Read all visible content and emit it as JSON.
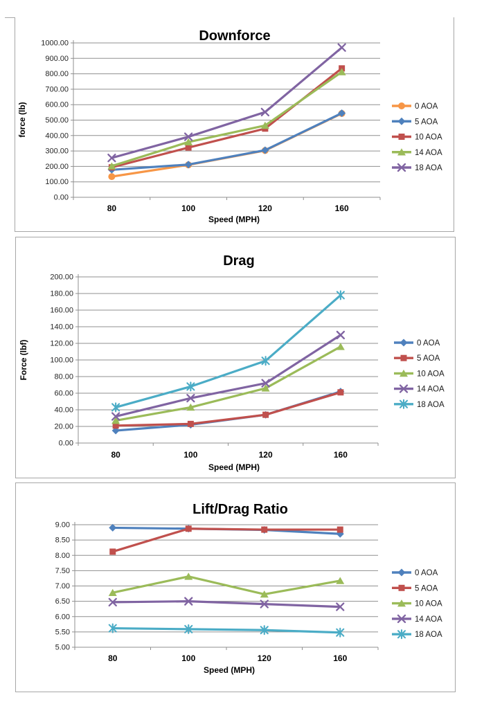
{
  "page": {
    "background": "#ffffff",
    "panel_border_color": "#a6a6a6",
    "gridline_color": "#8f8f8f",
    "axis_color": "#8f8f8f",
    "tick_label_color": "#262626",
    "title_color": "#000000"
  },
  "chart_data": [
    {
      "id": "downforce",
      "type": "line",
      "title": "Downforce",
      "xlabel": "Speed (MPH)",
      "ylabel": "force (lb)",
      "categories": [
        "80",
        "100",
        "120",
        "160"
      ],
      "ylim": [
        0,
        1000
      ],
      "y_tick_labels": [
        "1000.00",
        "900.00",
        "800.00",
        "700.00",
        "600.00",
        "500.00",
        "400.00",
        "300.00",
        "200.00",
        "100.00",
        "0.00"
      ],
      "grid": true,
      "legend_position": "right",
      "legend_entries": [
        "0 AOA",
        "5 AOA",
        "10 AOA",
        "14 AOA",
        "18 AOA"
      ],
      "series": [
        {
          "name": "0 AOA",
          "color": "#F79646",
          "marker": "circle",
          "values": [
            134,
            210,
            303,
            543
          ]
        },
        {
          "name": "5 AOA",
          "color": "#4F81BD",
          "marker": "diamond",
          "values": [
            178,
            212,
            305,
            545
          ]
        },
        {
          "name": "10 AOA",
          "color": "#C0504D",
          "marker": "square",
          "values": [
            194,
            322,
            445,
            835
          ]
        },
        {
          "name": "14 AOA",
          "color": "#9BBB59",
          "marker": "triangle",
          "values": [
            202,
            358,
            465,
            812
          ]
        },
        {
          "name": "18 AOA",
          "color": "#8064A2",
          "marker": "x",
          "values": [
            255,
            392,
            552,
            970
          ]
        }
      ]
    },
    {
      "id": "drag",
      "type": "line",
      "title": "Drag",
      "xlabel": "Speed (MPH)",
      "ylabel": "Force (lbf)",
      "categories": [
        "80",
        "100",
        "120",
        "160"
      ],
      "ylim": [
        0,
        200
      ],
      "y_tick_labels": [
        "200.00",
        "180.00",
        "160.00",
        "140.00",
        "120.00",
        "100.00",
        "80.00",
        "60.00",
        "40.00",
        "20.00",
        "0.00"
      ],
      "grid": true,
      "legend_position": "right",
      "legend_entries": [
        "0 AOA",
        "5 AOA",
        "10 AOA",
        "14 AOA",
        "18 AOA"
      ],
      "series": [
        {
          "name": "0 AOA",
          "color": "#4F81BD",
          "marker": "diamond",
          "values": [
            15,
            22,
            34,
            62
          ]
        },
        {
          "name": "5 AOA",
          "color": "#C0504D",
          "marker": "square",
          "values": [
            21,
            23,
            34,
            61
          ]
        },
        {
          "name": "10 AOA",
          "color": "#9BBB59",
          "marker": "triangle",
          "values": [
            27,
            43,
            66,
            116
          ]
        },
        {
          "name": "14 AOA",
          "color": "#8064A2",
          "marker": "x",
          "values": [
            32,
            54,
            72,
            130
          ]
        },
        {
          "name": "18 AOA",
          "color": "#4BACC6",
          "marker": "asterisk",
          "values": [
            43,
            68,
            99,
            178
          ]
        }
      ]
    },
    {
      "id": "liftdrag",
      "type": "line",
      "title": "Lift/Drag Ratio",
      "xlabel": "Speed (MPH)",
      "ylabel": "",
      "categories": [
        "80",
        "100",
        "120",
        "160"
      ],
      "ylim": [
        5,
        9
      ],
      "y_tick_labels": [
        "9.00",
        "8.50",
        "8.00",
        "7.50",
        "7.00",
        "6.50",
        "6.00",
        "5.50",
        "5.00"
      ],
      "grid": true,
      "legend_position": "right",
      "legend_entries": [
        "0 AOA",
        "5 AOA",
        "10 AOA",
        "14 AOA",
        "18 AOA"
      ],
      "series": [
        {
          "name": "0 AOA",
          "color": "#4F81BD",
          "marker": "diamond",
          "values": [
            8.9,
            8.87,
            8.83,
            8.7
          ]
        },
        {
          "name": "5 AOA",
          "color": "#C0504D",
          "marker": "square",
          "values": [
            8.12,
            8.87,
            8.84,
            8.84
          ]
        },
        {
          "name": "10 AOA",
          "color": "#9BBB59",
          "marker": "triangle",
          "values": [
            6.78,
            7.31,
            6.73,
            7.17
          ]
        },
        {
          "name": "14 AOA",
          "color": "#8064A2",
          "marker": "x",
          "values": [
            6.47,
            6.5,
            6.41,
            6.32
          ]
        },
        {
          "name": "18 AOA",
          "color": "#4BACC6",
          "marker": "asterisk",
          "values": [
            5.62,
            5.59,
            5.56,
            5.48
          ]
        }
      ]
    }
  ]
}
